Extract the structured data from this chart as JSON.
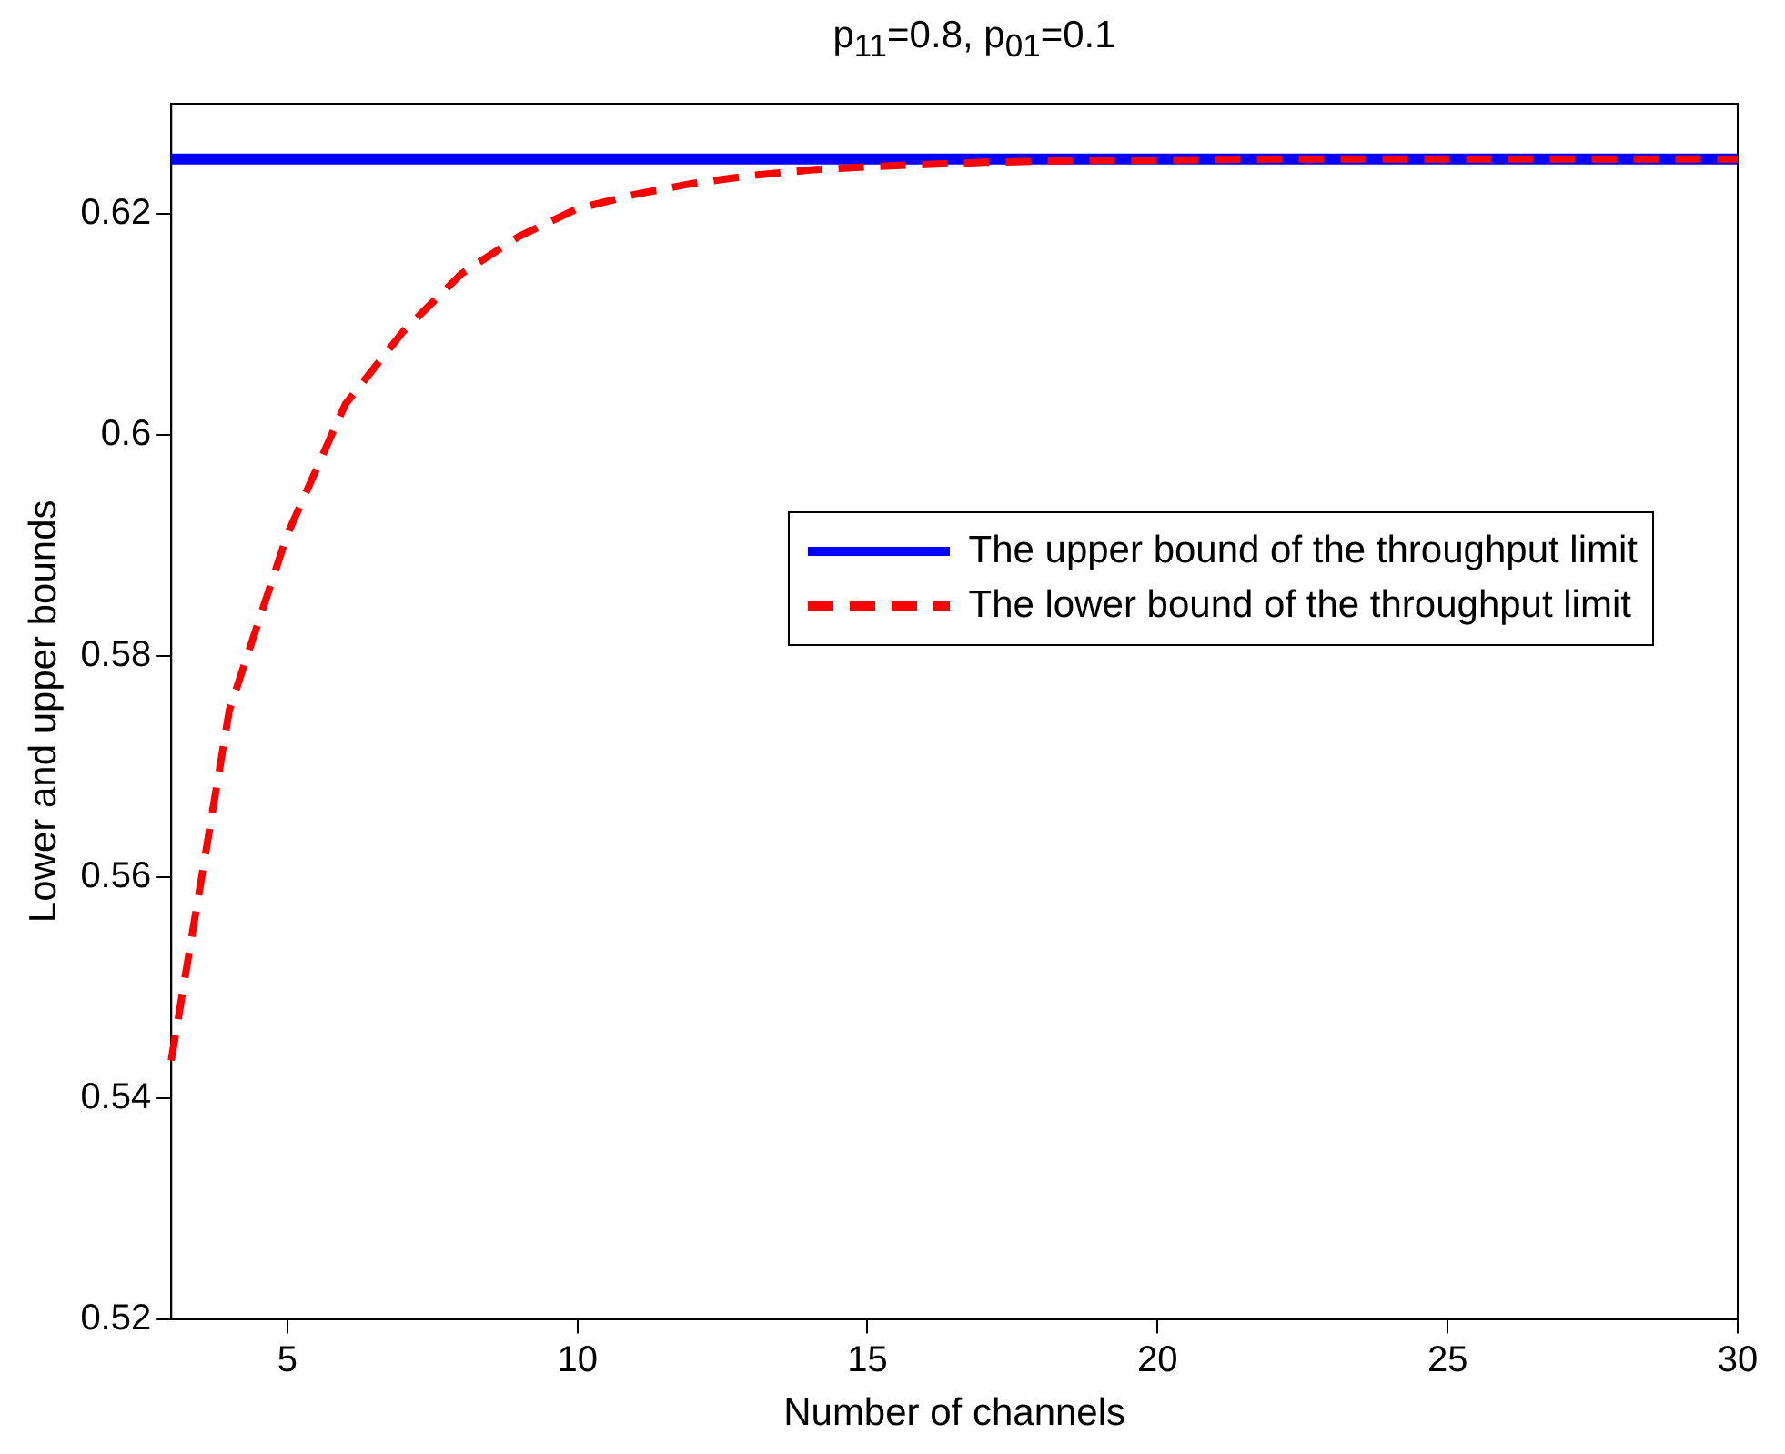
{
  "chart_data": {
    "type": "line",
    "title": "p$_{11}$=0.8, p$_{01}$=0.1",
    "xlabel": "Number of channels",
    "ylabel": "Lower and upper bounds",
    "x": [
      3,
      4,
      5,
      6,
      7,
      8,
      9,
      10,
      11,
      12,
      13,
      14,
      15,
      16,
      17,
      18,
      19,
      20,
      22,
      25,
      30
    ],
    "series": [
      {
        "name": "The upper bound of the throughput limit",
        "color": "#0000ff",
        "line_style": "solid",
        "values": [
          0.625,
          0.625,
          0.625,
          0.625,
          0.625,
          0.625,
          0.625,
          0.625,
          0.625,
          0.625,
          0.625,
          0.625,
          0.625,
          0.625,
          0.625,
          0.625,
          0.625,
          0.625,
          0.625,
          0.625,
          0.625
        ]
      },
      {
        "name": "The lower bound of the throughput limit",
        "color": "#ff0000",
        "line_style": "dashed",
        "values": [
          0.5434,
          0.5751,
          0.591,
          0.6028,
          0.6094,
          0.6146,
          0.618,
          0.6205,
          0.6218,
          0.6228,
          0.6235,
          0.624,
          0.6243,
          0.6245,
          0.6247,
          0.6248,
          0.6249,
          0.6249,
          0.625,
          0.625,
          0.625
        ]
      }
    ],
    "xlim": [
      3,
      30
    ],
    "xticks": [
      5,
      10,
      15,
      20,
      25,
      30
    ],
    "ylim": [
      0.52,
      0.63
    ],
    "yticks": [
      0.52,
      0.54,
      0.56,
      0.58,
      0.6,
      0.62
    ],
    "grid": false,
    "legend": "right",
    "marker": "none"
  }
}
